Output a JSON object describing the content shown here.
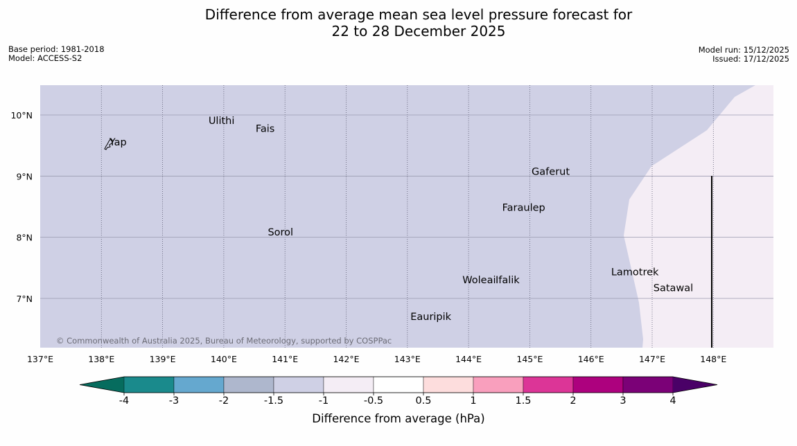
{
  "title": {
    "line1": "Difference from average mean sea level pressure forecast for",
    "line2": "22 to 28 December 2025"
  },
  "meta_left": {
    "base_period": "Base period: 1981-2018",
    "model": "Model: ACCESS-S2"
  },
  "meta_right": {
    "model_run": "Model run: 15/12/2025",
    "issued": "Issued: 17/12/2025"
  },
  "map": {
    "lon_labels": [
      "137°E",
      "138°E",
      "139°E",
      "140°E",
      "141°E",
      "142°E",
      "143°E",
      "144°E",
      "145°E",
      "146°E",
      "147°E",
      "148°E"
    ],
    "lon_values": [
      137,
      138,
      139,
      140,
      141,
      142,
      143,
      144,
      145,
      146,
      147,
      148
    ],
    "lat_labels": [
      "10°N",
      "9°N",
      "8°N",
      "7°N"
    ],
    "lat_values": [
      10,
      9,
      8,
      7
    ],
    "lon_range": [
      137,
      149
    ],
    "lat_range": [
      6.2,
      10.5
    ],
    "fill_colors": {
      "main": "#cfd0e5",
      "east": "#f4edf5"
    },
    "places": [
      {
        "name": "Ulithi",
        "lon": 139.75,
        "lat": 9.85
      },
      {
        "name": "Fais",
        "lon": 140.52,
        "lat": 9.72
      },
      {
        "name": "Yap",
        "lon": 138.13,
        "lat": 9.5
      },
      {
        "name": "Gaferut",
        "lon": 145.03,
        "lat": 9.02
      },
      {
        "name": "Faraulep",
        "lon": 144.55,
        "lat": 8.43
      },
      {
        "name": "Sorol",
        "lon": 140.72,
        "lat": 8.03
      },
      {
        "name": "Lamotrek",
        "lon": 146.33,
        "lat": 7.38
      },
      {
        "name": "Woleai",
        "lon": 143.9,
        "lat": 7.25
      },
      {
        "name": "Ifalik",
        "lon": 144.44,
        "lat": 7.25
      },
      {
        "name": "Satawal",
        "lon": 147.02,
        "lat": 7.12
      },
      {
        "name": "Eauripik",
        "lon": 143.05,
        "lat": 6.65
      }
    ],
    "copyright": "© Commonwealth of Australia 2025, Bureau of Meteorology, supported by COSPPac"
  },
  "colorbar": {
    "label": "Difference from average (hPa)",
    "tick_labels": [
      "-4",
      "-3",
      "-2",
      "-1.5",
      "-1",
      "-0.5",
      "0.5",
      "1",
      "1.5",
      "2",
      "3",
      "4"
    ],
    "colors": [
      "#1a8a8c",
      "#65a8cf",
      "#aeb7cd",
      "#cfd0e5",
      "#f4edf5",
      "#ffffff",
      "#fddddd",
      "#f99fbd",
      "#dc3597",
      "#ad017e",
      "#7b0177"
    ],
    "low_extend_color": "#066c5e",
    "high_extend_color": "#4a0167"
  }
}
